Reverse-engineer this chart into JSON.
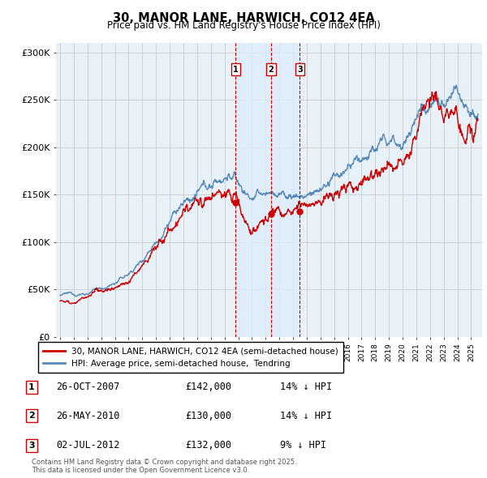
{
  "title": "30, MANOR LANE, HARWICH, CO12 4EA",
  "subtitle": "Price paid vs. HM Land Registry's House Price Index (HPI)",
  "ylabel_ticks": [
    "£0",
    "£50K",
    "£100K",
    "£150K",
    "£200K",
    "£250K",
    "£300K"
  ],
  "ytick_vals": [
    0,
    50000,
    100000,
    150000,
    200000,
    250000,
    300000
  ],
  "ylim": [
    0,
    310000
  ],
  "xlim_start": 1994.7,
  "xlim_end": 2025.8,
  "legend_red_label": "30, MANOR LANE, HARWICH, CO12 4EA (semi-detached house)",
  "legend_blue_label": "HPI: Average price, semi-detached house,  Tendring",
  "transactions": [
    {
      "num": 1,
      "date": "26-OCT-2007",
      "price": "£142,000",
      "pct": "14%",
      "x": 2007.82
    },
    {
      "num": 2,
      "date": "26-MAY-2010",
      "price": "£130,000",
      "pct": "14%",
      "x": 2010.4
    },
    {
      "num": 3,
      "date": "02-JUL-2012",
      "price": "£132,000",
      "pct": "9%",
      "x": 2012.5
    }
  ],
  "footnote": "Contains HM Land Registry data © Crown copyright and database right 2025.\nThis data is licensed under the Open Government Licence v3.0.",
  "red_color": "#cc0000",
  "blue_color": "#5588bb",
  "shade_color": "#ddeeff",
  "grid_color": "#cccccc",
  "background_color": "#e8f0f8"
}
